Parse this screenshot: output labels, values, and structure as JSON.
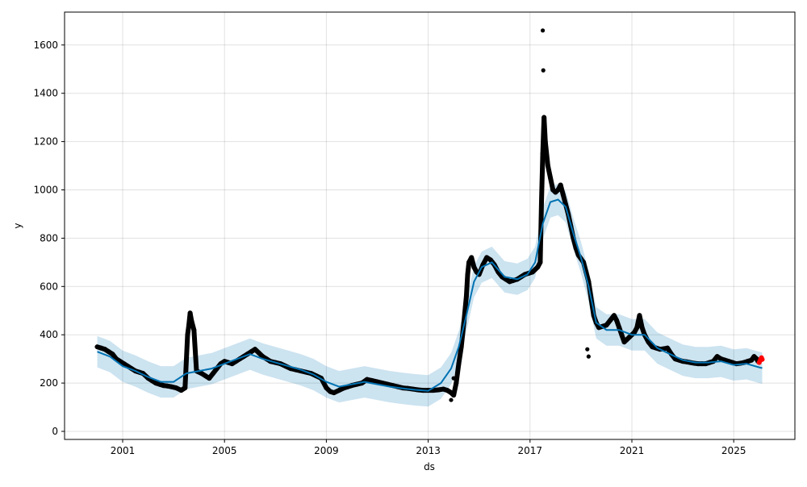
{
  "chart_data": {
    "type": "scatter",
    "title": "",
    "xlabel": "ds",
    "ylabel": "y",
    "xlim": [
      1998.3,
      2027.3
    ],
    "ylim": [
      -30,
      1740
    ],
    "x_ticks": [
      2001,
      2005,
      2009,
      2013,
      2017,
      2021,
      2025
    ],
    "y_ticks": [
      0,
      200,
      400,
      600,
      800,
      1000,
      1200,
      1400,
      1600
    ],
    "grid": true,
    "colors": {
      "observed": "#000000",
      "forecast": "#0072B2",
      "interval": "#0072B2",
      "new_points": "#ff0000"
    },
    "interval_halfwidth": 65,
    "observed": [
      [
        2000.0,
        350
      ],
      [
        2000.15,
        345
      ],
      [
        2000.3,
        340
      ],
      [
        2000.45,
        330
      ],
      [
        2000.6,
        320
      ],
      [
        2000.75,
        300
      ],
      [
        2000.9,
        290
      ],
      [
        2001.05,
        280
      ],
      [
        2001.2,
        270
      ],
      [
        2001.35,
        260
      ],
      [
        2001.5,
        250
      ],
      [
        2001.65,
        245
      ],
      [
        2001.8,
        240
      ],
      [
        2002.0,
        220
      ],
      [
        2002.15,
        210
      ],
      [
        2002.3,
        200
      ],
      [
        2002.45,
        195
      ],
      [
        2002.6,
        190
      ],
      [
        2002.75,
        188
      ],
      [
        2002.9,
        185
      ],
      [
        2003.1,
        180
      ],
      [
        2003.3,
        170
      ],
      [
        2003.45,
        180
      ],
      [
        2003.55,
        400
      ],
      [
        2003.6,
        440
      ],
      [
        2003.65,
        490
      ],
      [
        2003.7,
        460
      ],
      [
        2003.8,
        420
      ],
      [
        2003.9,
        250
      ],
      [
        2004.1,
        240
      ],
      [
        2004.25,
        230
      ],
      [
        2004.4,
        220
      ],
      [
        2004.55,
        240
      ],
      [
        2004.7,
        260
      ],
      [
        2004.85,
        280
      ],
      [
        2005.0,
        290
      ],
      [
        2005.15,
        285
      ],
      [
        2005.3,
        280
      ],
      [
        2005.45,
        290
      ],
      [
        2005.6,
        300
      ],
      [
        2005.75,
        310
      ],
      [
        2005.9,
        320
      ],
      [
        2006.05,
        330
      ],
      [
        2006.2,
        340
      ],
      [
        2006.35,
        325
      ],
      [
        2006.5,
        310
      ],
      [
        2006.65,
        300
      ],
      [
        2006.8,
        290
      ],
      [
        2007.0,
        285
      ],
      [
        2007.2,
        280
      ],
      [
        2007.4,
        270
      ],
      [
        2007.6,
        260
      ],
      [
        2007.8,
        255
      ],
      [
        2008.0,
        250
      ],
      [
        2008.2,
        245
      ],
      [
        2008.4,
        240
      ],
      [
        2008.6,
        230
      ],
      [
        2008.8,
        220
      ],
      [
        2009.0,
        180
      ],
      [
        2009.15,
        165
      ],
      [
        2009.3,
        160
      ],
      [
        2009.5,
        170
      ],
      [
        2009.7,
        180
      ],
      [
        2009.85,
        185
      ],
      [
        2010.0,
        190
      ],
      [
        2010.2,
        195
      ],
      [
        2010.4,
        200
      ],
      [
        2010.6,
        215
      ],
      [
        2010.8,
        210
      ],
      [
        2011.0,
        205
      ],
      [
        2011.2,
        200
      ],
      [
        2011.4,
        195
      ],
      [
        2011.6,
        190
      ],
      [
        2011.8,
        185
      ],
      [
        2012.0,
        180
      ],
      [
        2012.2,
        178
      ],
      [
        2012.4,
        175
      ],
      [
        2012.6,
        172
      ],
      [
        2012.8,
        170
      ],
      [
        2013.0,
        170
      ],
      [
        2013.2,
        170
      ],
      [
        2013.4,
        172
      ],
      [
        2013.6,
        175
      ],
      [
        2013.75,
        170
      ],
      [
        2013.9,
        160
      ],
      [
        2014.0,
        150
      ],
      [
        2014.1,
        200
      ],
      [
        2014.2,
        280
      ],
      [
        2014.3,
        350
      ],
      [
        2014.4,
        450
      ],
      [
        2014.5,
        560
      ],
      [
        2014.55,
        650
      ],
      [
        2014.6,
        700
      ],
      [
        2014.7,
        720
      ],
      [
        2014.8,
        680
      ],
      [
        2014.9,
        660
      ],
      [
        2015.0,
        650
      ],
      [
        2015.15,
        690
      ],
      [
        2015.3,
        720
      ],
      [
        2015.45,
        710
      ],
      [
        2015.6,
        690
      ],
      [
        2015.75,
        660
      ],
      [
        2015.9,
        640
      ],
      [
        2016.05,
        630
      ],
      [
        2016.2,
        620
      ],
      [
        2016.35,
        625
      ],
      [
        2016.5,
        630
      ],
      [
        2016.65,
        640
      ],
      [
        2016.8,
        650
      ],
      [
        2016.95,
        655
      ],
      [
        2017.1,
        660
      ],
      [
        2017.2,
        670
      ],
      [
        2017.3,
        680
      ],
      [
        2017.4,
        700
      ],
      [
        2017.45,
        950
      ],
      [
        2017.5,
        1150
      ],
      [
        2017.55,
        1300
      ],
      [
        2017.6,
        1200
      ],
      [
        2017.7,
        1100
      ],
      [
        2017.8,
        1050
      ],
      [
        2017.9,
        1000
      ],
      [
        2018.0,
        990
      ],
      [
        2018.1,
        1000
      ],
      [
        2018.2,
        1020
      ],
      [
        2018.3,
        980
      ],
      [
        2018.4,
        940
      ],
      [
        2018.5,
        900
      ],
      [
        2018.6,
        850
      ],
      [
        2018.7,
        800
      ],
      [
        2018.8,
        760
      ],
      [
        2018.9,
        730
      ],
      [
        2019.0,
        715
      ],
      [
        2019.1,
        700
      ],
      [
        2019.2,
        660
      ],
      [
        2019.3,
        620
      ],
      [
        2019.4,
        550
      ],
      [
        2019.5,
        480
      ],
      [
        2019.6,
        450
      ],
      [
        2019.7,
        430
      ],
      [
        2019.85,
        435
      ],
      [
        2020.0,
        440
      ],
      [
        2020.15,
        460
      ],
      [
        2020.3,
        480
      ],
      [
        2020.4,
        460
      ],
      [
        2020.5,
        430
      ],
      [
        2020.6,
        400
      ],
      [
        2020.7,
        370
      ],
      [
        2020.8,
        380
      ],
      [
        2020.9,
        390
      ],
      [
        2021.0,
        400
      ],
      [
        2021.1,
        410
      ],
      [
        2021.2,
        430
      ],
      [
        2021.3,
        480
      ],
      [
        2021.4,
        430
      ],
      [
        2021.5,
        400
      ],
      [
        2021.65,
        370
      ],
      [
        2021.8,
        350
      ],
      [
        2021.95,
        345
      ],
      [
        2022.1,
        340
      ],
      [
        2022.25,
        342
      ],
      [
        2022.4,
        345
      ],
      [
        2022.55,
        320
      ],
      [
        2022.7,
        300
      ],
      [
        2022.85,
        295
      ],
      [
        2023.0,
        290
      ],
      [
        2023.15,
        288
      ],
      [
        2023.3,
        285
      ],
      [
        2023.45,
        282
      ],
      [
        2023.6,
        280
      ],
      [
        2023.75,
        280
      ],
      [
        2023.9,
        280
      ],
      [
        2024.05,
        285
      ],
      [
        2024.2,
        290
      ],
      [
        2024.35,
        310
      ],
      [
        2024.5,
        300
      ],
      [
        2024.65,
        295
      ],
      [
        2024.8,
        290
      ],
      [
        2024.95,
        285
      ],
      [
        2025.1,
        280
      ],
      [
        2025.25,
        282
      ],
      [
        2025.4,
        285
      ],
      [
        2025.55,
        290
      ],
      [
        2025.7,
        295
      ],
      [
        2025.8,
        310
      ],
      [
        2025.9,
        300
      ],
      [
        2025.95,
        290
      ]
    ],
    "outliers": [
      [
        2017.5,
        1660
      ],
      [
        2017.52,
        1495
      ],
      [
        2019.3,
        310
      ],
      [
        2019.25,
        340
      ],
      [
        2013.9,
        130
      ],
      [
        2014.0,
        220
      ]
    ],
    "new_points": [
      [
        2026.0,
        285
      ],
      [
        2026.03,
        292
      ],
      [
        2026.06,
        300
      ],
      [
        2026.09,
        305
      ],
      [
        2026.12,
        298
      ]
    ],
    "forecast": [
      [
        2000.0,
        330
      ],
      [
        2000.5,
        310
      ],
      [
        2001.0,
        270
      ],
      [
        2001.5,
        250
      ],
      [
        2002.0,
        225
      ],
      [
        2002.5,
        205
      ],
      [
        2003.0,
        205
      ],
      [
        2003.5,
        240
      ],
      [
        2004.0,
        250
      ],
      [
        2004.5,
        260
      ],
      [
        2005.0,
        280
      ],
      [
        2005.5,
        300
      ],
      [
        2006.0,
        320
      ],
      [
        2006.5,
        300
      ],
      [
        2007.0,
        285
      ],
      [
        2007.5,
        270
      ],
      [
        2008.0,
        255
      ],
      [
        2008.5,
        235
      ],
      [
        2009.0,
        205
      ],
      [
        2009.5,
        185
      ],
      [
        2010.0,
        195
      ],
      [
        2010.5,
        205
      ],
      [
        2011.0,
        195
      ],
      [
        2011.5,
        185
      ],
      [
        2012.0,
        178
      ],
      [
        2012.5,
        172
      ],
      [
        2013.0,
        168
      ],
      [
        2013.5,
        200
      ],
      [
        2013.9,
        260
      ],
      [
        2014.2,
        350
      ],
      [
        2014.5,
        480
      ],
      [
        2014.8,
        620
      ],
      [
        2015.1,
        680
      ],
      [
        2015.5,
        700
      ],
      [
        2016.0,
        640
      ],
      [
        2016.5,
        630
      ],
      [
        2016.9,
        650
      ],
      [
        2017.2,
        700
      ],
      [
        2017.5,
        860
      ],
      [
        2017.8,
        950
      ],
      [
        2018.1,
        960
      ],
      [
        2018.4,
        930
      ],
      [
        2018.7,
        820
      ],
      [
        2019.0,
        720
      ],
      [
        2019.3,
        600
      ],
      [
        2019.6,
        450
      ],
      [
        2020.0,
        420
      ],
      [
        2020.5,
        420
      ],
      [
        2021.0,
        400
      ],
      [
        2021.5,
        400
      ],
      [
        2022.0,
        345
      ],
      [
        2022.5,
        320
      ],
      [
        2023.0,
        295
      ],
      [
        2023.5,
        285
      ],
      [
        2024.0,
        285
      ],
      [
        2024.5,
        290
      ],
      [
        2025.0,
        275
      ],
      [
        2025.5,
        280
      ],
      [
        2026.0,
        265
      ],
      [
        2026.12,
        262
      ]
    ]
  }
}
